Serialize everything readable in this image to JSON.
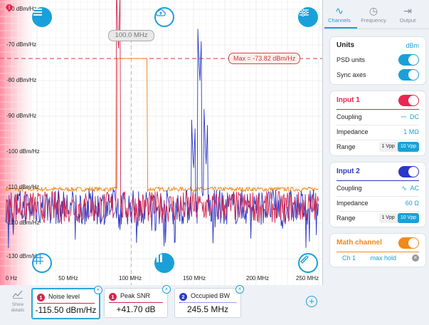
{
  "plot": {
    "y_ticks": [
      "-60 dBm/Hz",
      "-70 dBm/Hz",
      "-80 dBm/Hz",
      "-90 dBm/Hz",
      "-100 dBm/Hz",
      "-110 dBm/Hz",
      "-120 dBm/Hz",
      "-130 dBm/Hz"
    ],
    "x_ticks": [
      "0 Hz",
      "50 MHz",
      "100 MHz",
      "150 MHz",
      "200 MHz",
      "250 MHz"
    ],
    "marker_label": "100.0 MHz",
    "max_label": "Max = -73.82 dBm/Hz",
    "icons": {
      "menu": "menu-icon",
      "cloud": "cloud-upload-icon",
      "settings": "sliders-icon",
      "grid": "grid-icon",
      "pause": "pause-icon",
      "ruler": "ruler-icon",
      "alert": "alert-icon"
    }
  },
  "chart_data": {
    "type": "line",
    "xlabel": "",
    "ylabel": "",
    "xlim": [
      0,
      250
    ],
    "ylim": [
      -130,
      -60
    ],
    "x_unit": "MHz",
    "y_unit": "dBm/Hz",
    "max_hold_level": -73.82,
    "series": [
      {
        "color": "#d2264f",
        "noise_floor": -115.5,
        "peaks": [
          {
            "x": 90,
            "y": -73.8
          }
        ]
      },
      {
        "color": "#f08a1a",
        "noise_floor": -110.5,
        "band": {
          "from": 89,
          "to": 113,
          "y": -73.8
        }
      },
      {
        "color": "#2b38c8",
        "noise_floor": -115.5,
        "peaks": [
          {
            "x": 150,
            "y": -106
          },
          {
            "x": 155,
            "y": -81
          },
          {
            "x": 160,
            "y": -104
          }
        ]
      }
    ]
  },
  "measurements": [
    {
      "num": "1",
      "title": "Noise level",
      "value": "-115.50 dBm/Hz",
      "color": "#d2264f"
    },
    {
      "num": "1",
      "title": "Peak SNR",
      "value": "+41.70 dB",
      "color": "#d2264f"
    },
    {
      "num": "2",
      "title": "Occupied BW",
      "value": "245.5 MHz",
      "color": "#2b38c8"
    }
  ],
  "bottom": {
    "show_details": "Show details",
    "add": "+"
  },
  "tabs": [
    {
      "label": "Channels",
      "icon": "wave-icon"
    },
    {
      "label": "Frequency",
      "icon": "clock-icon"
    },
    {
      "label": "Output",
      "icon": "output-icon"
    }
  ],
  "units_card": {
    "title": "Units",
    "value": "dBm",
    "psd": "PSD units",
    "sync": "Sync axes"
  },
  "input1": {
    "title": "Input 1",
    "coupling": "Coupling",
    "coupling_value": "DC",
    "impedance": "Impedance",
    "impedance_value": "1 MΩ",
    "range": "Range",
    "r1": "1 Vpp",
    "r2": "10 Vpp",
    "color": "#e8264f"
  },
  "input2": {
    "title": "Input 2",
    "coupling": "Coupling",
    "coupling_value": "AC",
    "impedance": "Impedance",
    "impedance_value": "60 Ω",
    "range": "Range",
    "r1": "1 Vpp",
    "r2": "10 Vpp",
    "color": "#2b38c8"
  },
  "math": {
    "title": "Math channel",
    "source": "Ch 1",
    "op": "max hold",
    "color": "#f08a1a"
  }
}
